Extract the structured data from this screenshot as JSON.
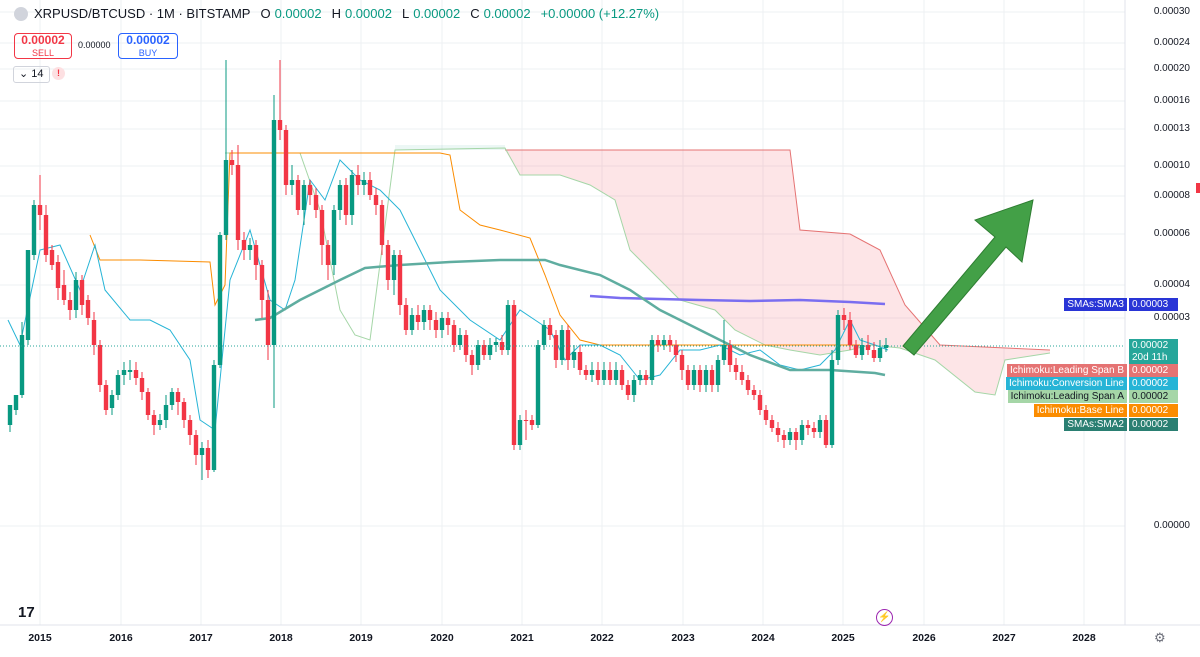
{
  "header": {
    "symbol": "XRPUSD/BTCUSD · 1M · BITSTAMP",
    "o_label": "O",
    "o_value": "0.00002",
    "h_label": "H",
    "h_value": "0.00002",
    "l_label": "L",
    "l_value": "0.00002",
    "c_label": "C",
    "c_value": "0.00002",
    "change": "+0.00000 (+12.27%)"
  },
  "trade": {
    "sell_price": "0.00002",
    "sell_label": "SELL",
    "spread": "0.00000",
    "buy_price": "0.00002",
    "buy_label": "BUY"
  },
  "indicators_toggle": {
    "count": "14",
    "warning": "!"
  },
  "price_axis": {
    "ticks": [
      "0.00030",
      "0.00024",
      "0.00020",
      "0.00016",
      "0.00013",
      "0.00010",
      "0.00008",
      "0.00006",
      "0.00004",
      "0.00003",
      "0.00000"
    ]
  },
  "time_axis": {
    "ticks": [
      "2015",
      "2016",
      "2017",
      "2018",
      "2019",
      "2020",
      "2021",
      "2022",
      "2023",
      "2024",
      "2025",
      "2026",
      "2027",
      "2028"
    ]
  },
  "legend_tags": [
    {
      "name": "SMAs:SMA3",
      "value": "0.00003",
      "color": "#2935d6"
    },
    {
      "name": "",
      "value": "0.00002",
      "sub": "20d 11h",
      "color": "#26a69a"
    },
    {
      "name": "Ichimoku:Leading Span B",
      "value": "0.00002",
      "color": "#e57373"
    },
    {
      "name": "Ichimoku:Conversion Line",
      "value": "0.00002",
      "color": "#26b4d6"
    },
    {
      "name": "Ichimoku:Leading Span A",
      "value": "0.00002",
      "color": "#a5d6a7"
    },
    {
      "name": "Ichimoku:Base Line",
      "value": "0.00002",
      "color": "#fb8c00"
    },
    {
      "name": "SMAs:SMA2",
      "value": "0.00002",
      "color": "#2a7f72"
    }
  ],
  "branding": {
    "logo": "17"
  },
  "chart_data": {
    "type": "candlestick",
    "title": "XRPUSD/BTCUSD · 1M · BITSTAMP",
    "scale": "log",
    "x_range": [
      "2015",
      "2028"
    ],
    "series": [
      {
        "name": "SMAs:SMA3",
        "color": "#6b6bf0"
      },
      {
        "name": "SMAs:SMA2",
        "color": "#5fada0"
      },
      {
        "name": "Ichimoku:Leading Span B",
        "color": "#e57373"
      },
      {
        "name": "Ichimoku:Conversion Line",
        "color": "#26b4d6"
      },
      {
        "name": "Ichimoku:Leading Span A",
        "color": "#a5d6a7"
      },
      {
        "name": "Ichimoku:Base Line",
        "color": "#fb8c00"
      }
    ],
    "last_value": "0.00002",
    "annotation": "green upward arrow projecting higher",
    "grid": true
  }
}
